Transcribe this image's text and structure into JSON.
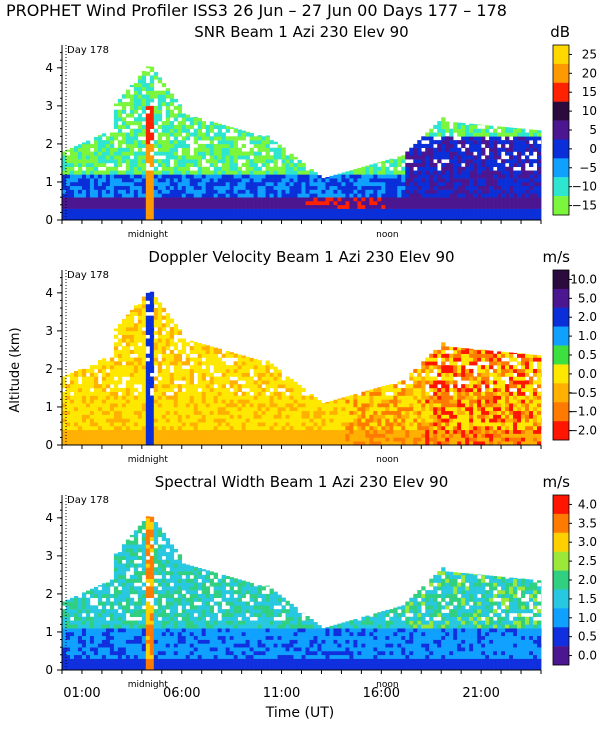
{
  "figure": {
    "title": "PROPHET Wind Profiler ISS3  26 Jun – 27 Jun 00 Days 177 – 178",
    "ylabel": "Altitude (km)",
    "xlabel": "Time (UT)",
    "x_ticklabels": [
      "01:00",
      "06:00",
      "11:00",
      "16:00",
      "21:00"
    ],
    "x_tick_hours": [
      1,
      6,
      11,
      16,
      21
    ]
  },
  "chart_data": [
    {
      "type": "heatmap",
      "title": "SNR Beam 1 Azi 230 Elev 90",
      "units": "dB",
      "day_marker": "Day 178",
      "annotations": [
        "midnight",
        "noon"
      ],
      "ylim": [
        0,
        4.6
      ],
      "xlim": [
        0,
        24
      ],
      "yticks": [
        0,
        1,
        2,
        3,
        4
      ],
      "colorbar_labels": [
        "25",
        "20",
        "15",
        "10",
        "5",
        "0",
        "−5",
        "−10",
        "−15"
      ],
      "colorbar_colors": [
        "#ffd800",
        "#ff9900",
        "#ff2200",
        "#2b0a3d",
        "#4b1690",
        "#0a2fd8",
        "#10a0ff",
        "#2ee6d0",
        "#7cf63c"
      ],
      "scale": "snr"
    },
    {
      "type": "heatmap",
      "title": "Doppler Velocity Beam 1 Azi 230 Elev 90",
      "units": "m/s",
      "day_marker": "Day 178",
      "annotations": [
        "midnight",
        "noon"
      ],
      "ylim": [
        0,
        4.6
      ],
      "xlim": [
        0,
        24
      ],
      "yticks": [
        0,
        1,
        2,
        3,
        4
      ],
      "colorbar_labels": [
        "10.0",
        "5.0",
        "2.0",
        "1.0",
        "0.5",
        "0.0",
        "−0.5",
        "−1.0",
        "−2.0"
      ],
      "colorbar_colors": [
        "#2b0a3d",
        "#4b1690",
        "#0a2fd8",
        "#10a0ff",
        "#3ee040",
        "#ffe800",
        "#ffb000",
        "#ff7a00",
        "#ff1500"
      ],
      "scale": "vel"
    },
    {
      "type": "heatmap",
      "title": "Spectral Width Beam 1 Azi 230 Elev 90",
      "units": "m/s",
      "day_marker": "Day 178",
      "annotations": [
        "midnight",
        "noon"
      ],
      "ylim": [
        0,
        4.6
      ],
      "xlim": [
        0,
        24
      ],
      "yticks": [
        0,
        1,
        2,
        3,
        4
      ],
      "colorbar_labels": [
        "4.0",
        "3.5",
        "3.0",
        "2.5",
        "2.0",
        "1.5",
        "1.0",
        "0.5",
        "0.0"
      ],
      "colorbar_colors": [
        "#ff1500",
        "#ff7a00",
        "#ffd000",
        "#9be83a",
        "#30d080",
        "#28c8e0",
        "#10a0ff",
        "#1030e0",
        "#4b1690"
      ],
      "scale": "sw"
    }
  ]
}
